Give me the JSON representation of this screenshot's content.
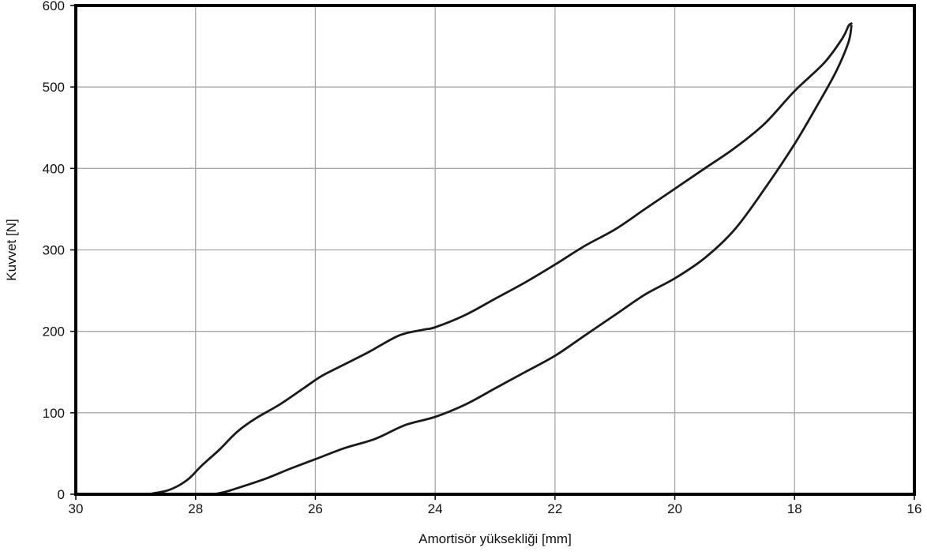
{
  "chart_data": {
    "type": "line",
    "title": "",
    "xlabel": "Amortisör yüksekliği [mm]",
    "ylabel": "Kuvvet [N]",
    "xlim": [
      30,
      16
    ],
    "ylim": [
      0,
      600
    ],
    "x_reversed": true,
    "x_ticks": [
      30,
      28,
      26,
      24,
      22,
      20,
      18,
      16
    ],
    "y_ticks": [
      0,
      100,
      200,
      300,
      400,
      500,
      600
    ],
    "grid": true,
    "legend": "none",
    "line_color": "#1a1a1a",
    "series": [
      {
        "x": [
          28.8,
          28.5,
          28.3,
          28.1,
          27.9,
          27.6,
          27.3,
          27.0,
          26.6,
          26.2,
          25.9,
          25.5,
          25.1,
          24.6,
          24.2,
          24.0,
          23.5,
          23.0,
          22.5,
          22.0,
          21.5,
          21.0,
          20.5,
          20.0,
          19.5,
          19.0,
          18.5,
          18.0,
          17.5,
          17.2,
          17.1,
          17.05
        ],
        "y": [
          0,
          4,
          10,
          20,
          35,
          55,
          77,
          93,
          110,
          130,
          145,
          160,
          175,
          195,
          202,
          205,
          220,
          240,
          260,
          282,
          305,
          325,
          350,
          375,
          400,
          425,
          455,
          495,
          530,
          560,
          575,
          578
        ]
      },
      {
        "x": [
          17.05,
          17.1,
          17.3,
          17.6,
          18.0,
          18.5,
          19.0,
          19.5,
          20.0,
          20.5,
          21.0,
          21.5,
          22.0,
          22.5,
          23.0,
          23.5,
          24.0,
          24.5,
          25.0,
          25.5,
          26.0,
          26.4,
          26.8,
          27.2,
          27.5,
          27.7
        ],
        "y": [
          575,
          555,
          520,
          480,
          430,
          375,
          325,
          290,
          265,
          245,
          220,
          195,
          170,
          150,
          130,
          110,
          95,
          85,
          68,
          57,
          43,
          32,
          20,
          10,
          3,
          0
        ]
      }
    ]
  }
}
